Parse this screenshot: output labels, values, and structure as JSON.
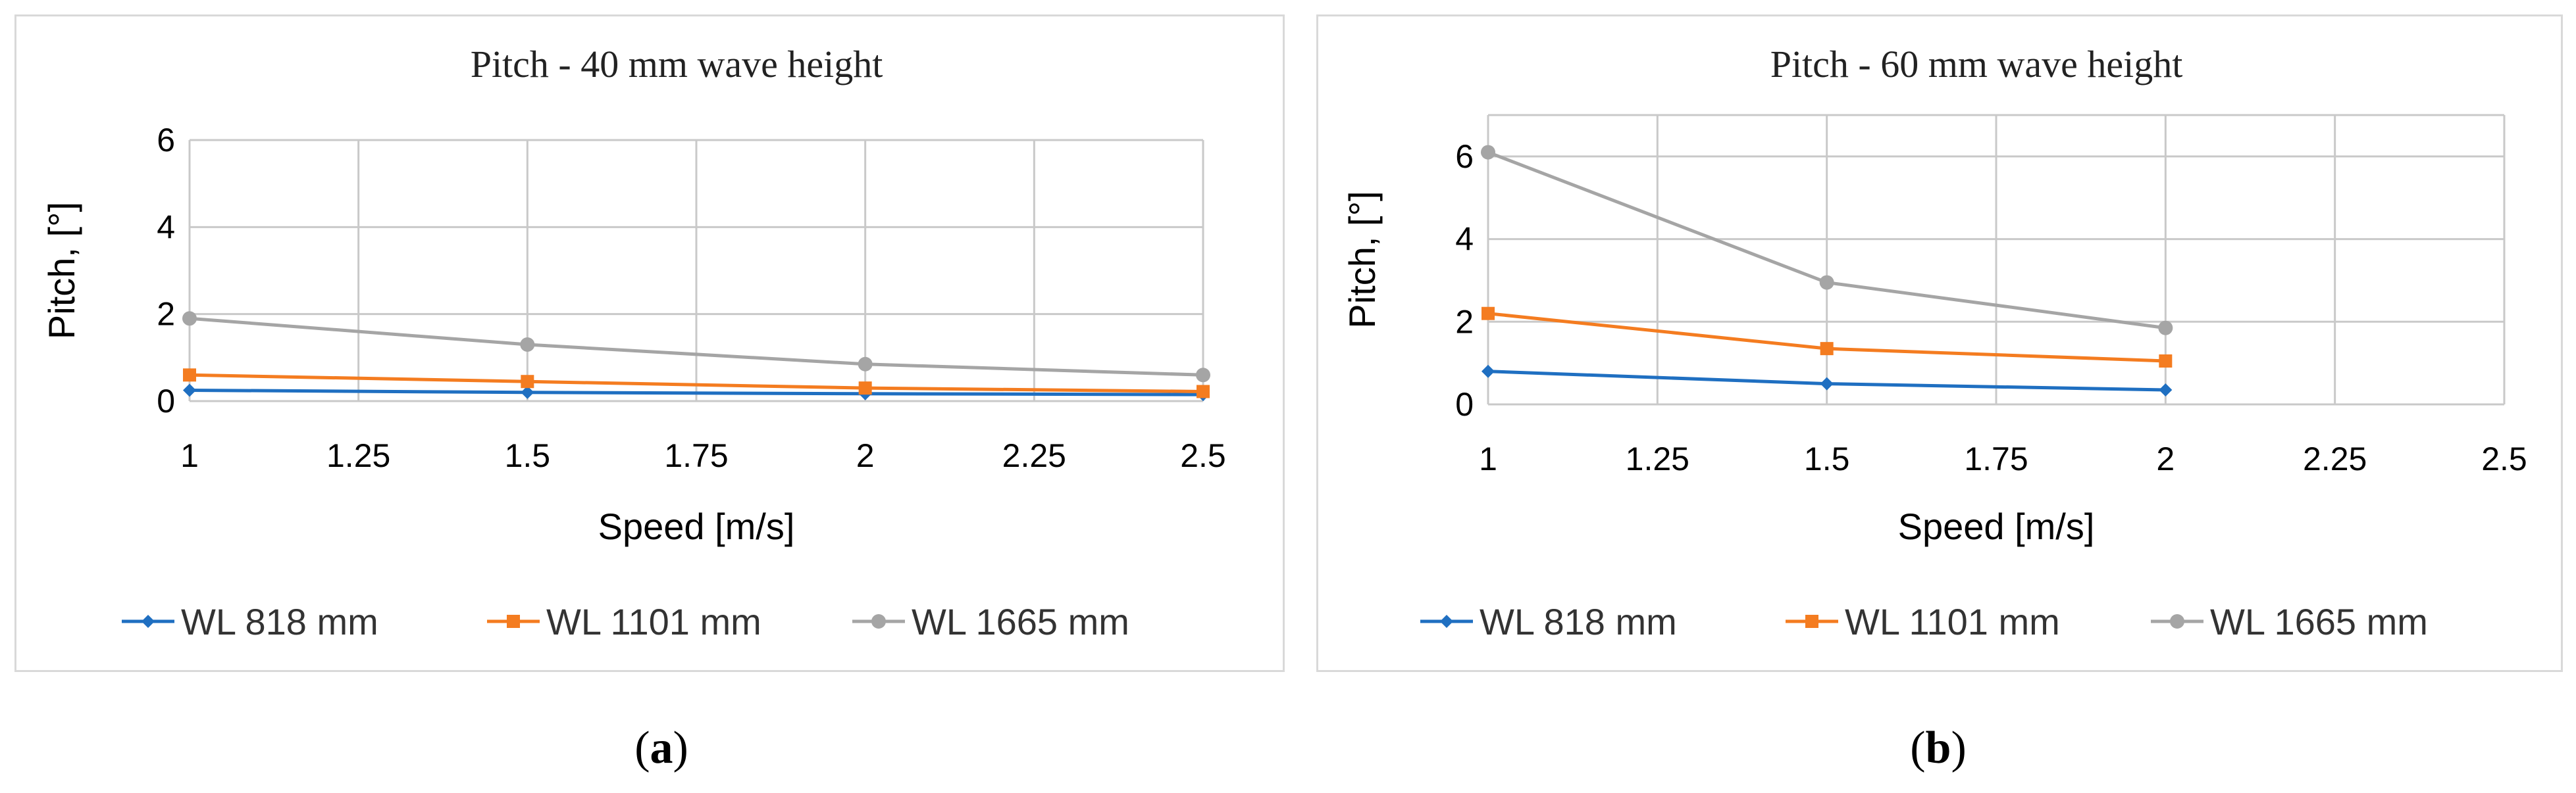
{
  "captions": [
    {
      "open": "(",
      "letter": "a",
      "close": ")"
    },
    {
      "open": "(",
      "letter": "b",
      "close": ")"
    }
  ],
  "colors": {
    "WL 818 mm": "#1f6fc1",
    "WL 1101 mm": "#f47c20",
    "WL 1665 mm": "#a5a5a5",
    "grid": "#c9c9c9"
  },
  "chart_data": [
    {
      "type": "line",
      "title": "Pitch - 40 mm wave height",
      "xlabel": "Speed [m/s]",
      "ylabel": "Pitch, [°]",
      "xlim": [
        1,
        2.5
      ],
      "ylim": [
        0,
        6
      ],
      "xticks": [
        "1",
        "1.25",
        "1.5",
        "1.75",
        "2",
        "2.25",
        "2.5"
      ],
      "yticks": [
        "0",
        "2",
        "4",
        "6"
      ],
      "grid": true,
      "legend": "bottom",
      "series": [
        {
          "name": "WL 818 mm",
          "marker": "diamond",
          "x": [
            1,
            1.5,
            2,
            2.5
          ],
          "y": [
            0.25,
            0.2,
            0.17,
            0.15
          ]
        },
        {
          "name": "WL 1101 mm",
          "marker": "square",
          "x": [
            1,
            1.5,
            2,
            2.5
          ],
          "y": [
            0.6,
            0.45,
            0.3,
            0.22
          ]
        },
        {
          "name": "WL 1665 mm",
          "marker": "circle",
          "x": [
            1,
            1.5,
            2,
            2.5
          ],
          "y": [
            1.9,
            1.3,
            0.85,
            0.6
          ]
        }
      ]
    },
    {
      "type": "line",
      "title": "Pitch - 60 mm wave height",
      "xlabel": "Speed [m/s]",
      "ylabel": "Pitch, [°]",
      "xlim": [
        1,
        2.5
      ],
      "ylim": [
        0,
        7
      ],
      "xticks": [
        "1",
        "1.25",
        "1.5",
        "1.75",
        "2",
        "2.25",
        "2.5"
      ],
      "yticks": [
        "0",
        "2",
        "4",
        "6"
      ],
      "grid": true,
      "legend": "bottom",
      "series": [
        {
          "name": "WL 818 mm",
          "marker": "diamond",
          "x": [
            1,
            1.5,
            2
          ],
          "y": [
            0.8,
            0.5,
            0.35
          ]
        },
        {
          "name": "WL 1101 mm",
          "marker": "square",
          "x": [
            1,
            1.5,
            2
          ],
          "y": [
            2.2,
            1.35,
            1.05
          ]
        },
        {
          "name": "WL 1665 mm",
          "marker": "circle",
          "x": [
            1,
            1.5,
            2
          ],
          "y": [
            6.1,
            2.95,
            1.85
          ]
        }
      ]
    }
  ]
}
